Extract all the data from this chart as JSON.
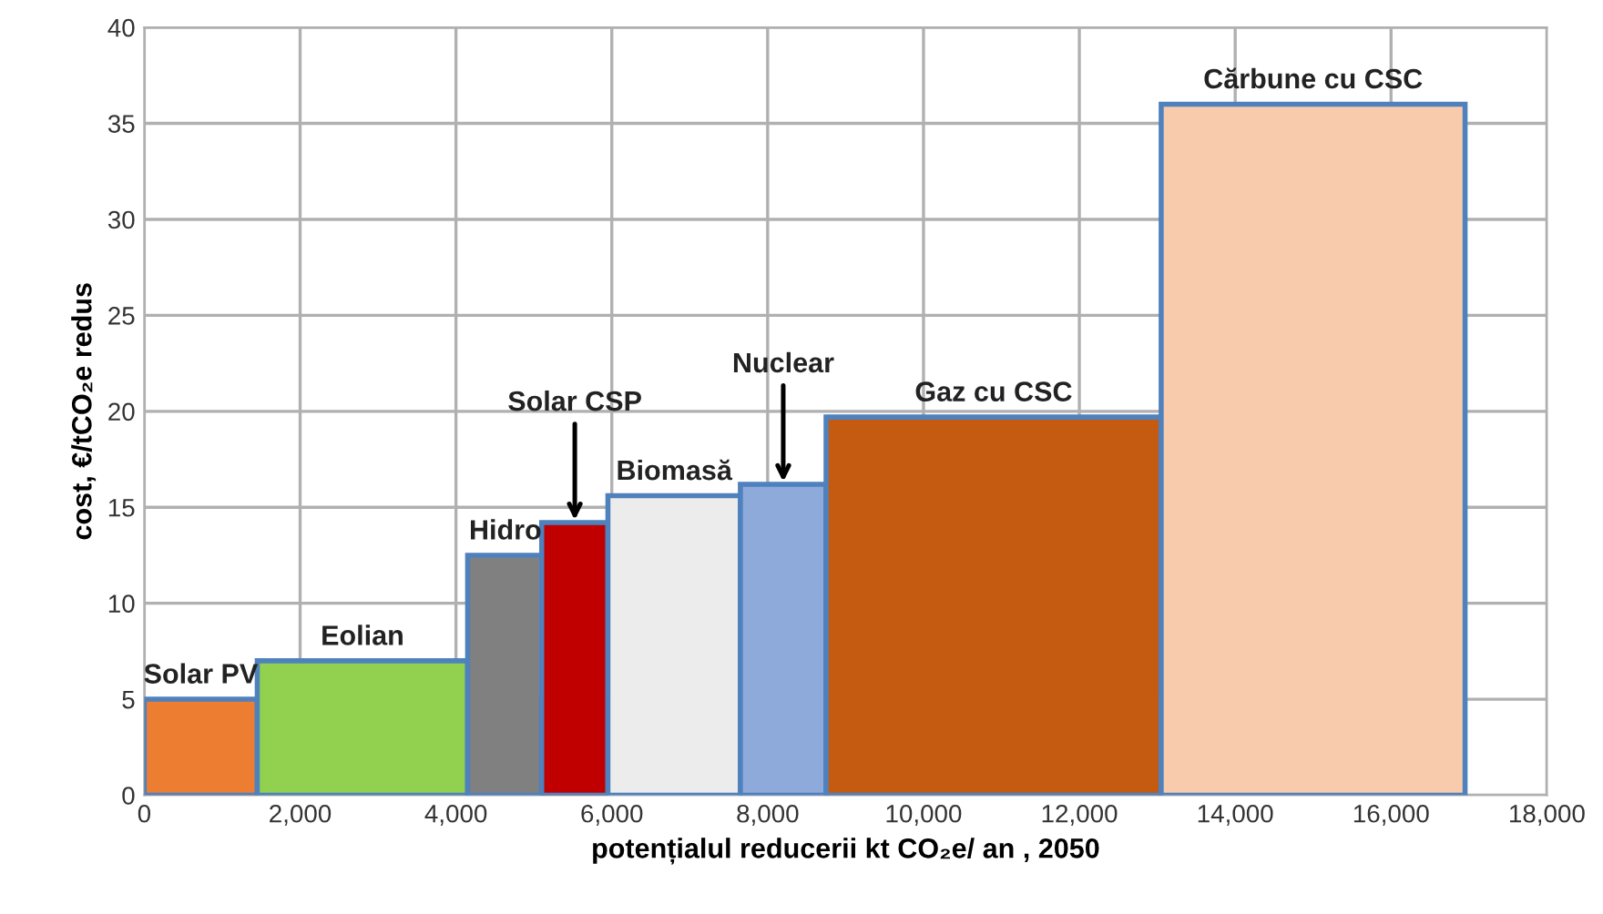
{
  "chart_data": {
    "type": "histogram",
    "bins": [
      0,
      1450,
      4150,
      5100,
      5950,
      7650,
      8750,
      13050,
      16950
    ],
    "values": [
      5.0,
      7.0,
      12.5,
      14.2,
      15.6,
      16.2,
      19.7,
      36.0
    ],
    "colors": [
      "#ed7d31",
      "#92d050",
      "#808080",
      "#c00000",
      "#ececec",
      "#8eaadb",
      "#c55a11",
      "#f8cbad"
    ],
    "xlabel": "potențialul reducerii kt CO₂e/ an , 2050",
    "ylabel": "cost, €/tCO₂e redus",
    "xlim": [
      0,
      18000
    ],
    "xticks": [
      0,
      {
        "value": 2000,
        "label": "2,000"
      },
      {
        "value": 4000,
        "label": "4,000"
      },
      {
        "value": 6000,
        "label": "6,000"
      },
      {
        "value": 8000,
        "label": "8,000"
      },
      {
        "value": 10000,
        "label": "10,000"
      },
      {
        "value": 12000,
        "label": "12,000"
      },
      {
        "value": 14000,
        "label": "14,000"
      },
      {
        "value": 16000,
        "label": "16,000"
      },
      {
        "value": 18000,
        "label": "18,000"
      }
    ],
    "ylim": [
      0,
      40
    ],
    "yticks": [
      0,
      5,
      10,
      15,
      20,
      25,
      30,
      35,
      40
    ],
    "grid": true,
    "annotations": [
      {
        "text": "Solar PV",
        "x": 725,
        "y": 5.0
      },
      {
        "text": "Eolian",
        "x": 2800,
        "y": 7.0
      },
      {
        "text": "Hidro",
        "x": 4625,
        "y": 12.5
      },
      {
        "text": "Solar CSP",
        "x": 5525,
        "y": 14.2
      },
      {
        "text": "Biomasă",
        "x": 6800,
        "y": 15.6
      },
      {
        "text": "Nuclear",
        "x": 8200,
        "y": 16.2
      },
      {
        "text": "Gaz cu CSC",
        "x": 10900,
        "y": 19.7
      },
      {
        "text": "Cărbune cu CSC",
        "x": 15000,
        "y": 36.0
      }
    ]
  }
}
